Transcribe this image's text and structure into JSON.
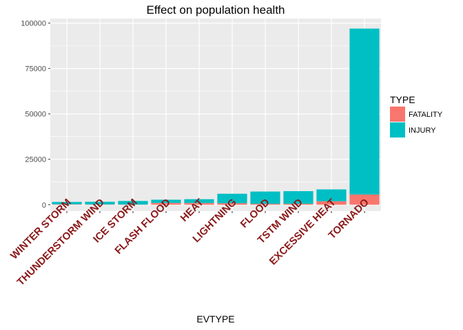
{
  "chart_data": {
    "type": "bar",
    "stacked": true,
    "title": "Effect on population health",
    "xlabel": "EVTYPE",
    "ylabel": "",
    "categories": [
      "WINTER STORM",
      "THUNDERSTORM WIND",
      "ICE STORM",
      "FLASH FLOOD",
      "HEAT",
      "LIGHTNING",
      "FLOOD",
      "TSTM WIND",
      "EXCESSIVE HEAT",
      "TORNADO"
    ],
    "series": [
      {
        "name": "FATALITY",
        "color": "#F8766D",
        "values": [
          206,
          133,
          89,
          978,
          937,
          816,
          470,
          504,
          1903,
          5633
        ]
      },
      {
        "name": "INJURY",
        "color": "#00BFC4",
        "values": [
          1321,
          1488,
          1975,
          1777,
          2100,
          5230,
          6789,
          6957,
          6525,
          91346
        ]
      }
    ],
    "ylim": [
      -3500,
      102500
    ],
    "yticks": [
      0,
      25000,
      50000,
      75000,
      100000
    ],
    "ytick_labels": [
      "0",
      "25000",
      "50000",
      "75000",
      "100000"
    ],
    "grid": true,
    "legend": {
      "title": "TYPE",
      "position": "right",
      "entries": [
        "FATALITY",
        "INJURY"
      ]
    },
    "colors": {
      "panel": "#EBEBEB",
      "grid": "#FFFFFF",
      "tick_text": "#8B1A1A"
    }
  }
}
